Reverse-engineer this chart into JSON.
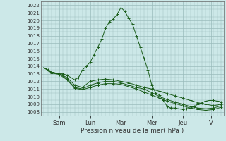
{
  "xlabel": "Pression niveau de la mer( hPa )",
  "background_color": "#cce8e8",
  "grid_color": "#99bbbb",
  "line_color": "#1a5c1a",
  "ylim": [
    1008,
    1022
  ],
  "yticks": [
    1008,
    1009,
    1010,
    1011,
    1012,
    1013,
    1014,
    1015,
    1016,
    1017,
    1018,
    1019,
    1020,
    1021,
    1022
  ],
  "day_labels": [
    "Sam",
    "Lun",
    "Mar",
    "Mer",
    "Jeu",
    "V"
  ],
  "day_positions": [
    24,
    72,
    120,
    168,
    216,
    260
  ],
  "series1_x": [
    0,
    6,
    12,
    18,
    24,
    30,
    36,
    42,
    48,
    54,
    60,
    66,
    72,
    78,
    84,
    90,
    96,
    102,
    108,
    114,
    120,
    126,
    132,
    138,
    144,
    150,
    156,
    162,
    168,
    174,
    180,
    186,
    192,
    198,
    204,
    210,
    216,
    222,
    228,
    234,
    240,
    246,
    252,
    258,
    264,
    270,
    276
  ],
  "series1_y": [
    1013.8,
    1013.5,
    1013.2,
    1013.1,
    1013.0,
    1013.0,
    1012.8,
    1012.5,
    1012.2,
    1012.5,
    1013.5,
    1014.0,
    1014.5,
    1015.5,
    1016.5,
    1017.5,
    1019.0,
    1019.8,
    1020.2,
    1020.8,
    1021.7,
    1021.2,
    1020.3,
    1019.5,
    1018.0,
    1016.5,
    1015.0,
    1013.5,
    1011.5,
    1010.5,
    1010.2,
    1009.5,
    1008.7,
    1008.5,
    1008.5,
    1008.4,
    1008.3,
    1008.4,
    1008.5,
    1008.7,
    1009.0,
    1009.2,
    1009.4,
    1009.5,
    1009.5,
    1009.4,
    1009.3
  ],
  "series2_x": [
    0,
    12,
    24,
    36,
    48,
    60,
    72,
    84,
    96,
    108,
    120,
    132,
    144,
    156,
    168,
    180,
    192,
    204,
    216,
    228,
    240,
    252,
    264,
    276
  ],
  "series2_y": [
    1013.8,
    1013.2,
    1013.0,
    1012.5,
    1011.5,
    1011.2,
    1012.0,
    1012.2,
    1012.3,
    1012.2,
    1012.0,
    1011.8,
    1011.5,
    1011.2,
    1011.0,
    1010.7,
    1010.4,
    1010.1,
    1009.8,
    1009.5,
    1009.2,
    1009.0,
    1008.8,
    1009.0
  ],
  "series3_x": [
    0,
    12,
    24,
    36,
    48,
    60,
    72,
    84,
    96,
    108,
    120,
    132,
    144,
    156,
    168,
    180,
    192,
    204,
    216,
    228,
    240,
    252,
    264,
    276
  ],
  "series3_y": [
    1013.8,
    1013.2,
    1013.0,
    1012.3,
    1011.2,
    1011.0,
    1011.5,
    1011.8,
    1012.0,
    1012.0,
    1011.8,
    1011.5,
    1011.2,
    1011.0,
    1010.5,
    1010.0,
    1009.6,
    1009.3,
    1009.0,
    1008.7,
    1008.5,
    1008.4,
    1008.5,
    1008.8
  ],
  "series4_x": [
    0,
    12,
    24,
    36,
    48,
    60,
    72,
    84,
    96,
    108,
    120,
    132,
    144,
    156,
    168,
    180,
    192,
    204,
    216,
    228,
    240,
    252,
    264,
    276
  ],
  "series4_y": [
    1013.8,
    1013.1,
    1012.9,
    1012.2,
    1011.1,
    1010.9,
    1011.2,
    1011.5,
    1011.7,
    1011.7,
    1011.6,
    1011.3,
    1011.0,
    1010.6,
    1010.2,
    1009.8,
    1009.4,
    1009.1,
    1008.8,
    1008.5,
    1008.3,
    1008.2,
    1008.3,
    1008.6
  ]
}
